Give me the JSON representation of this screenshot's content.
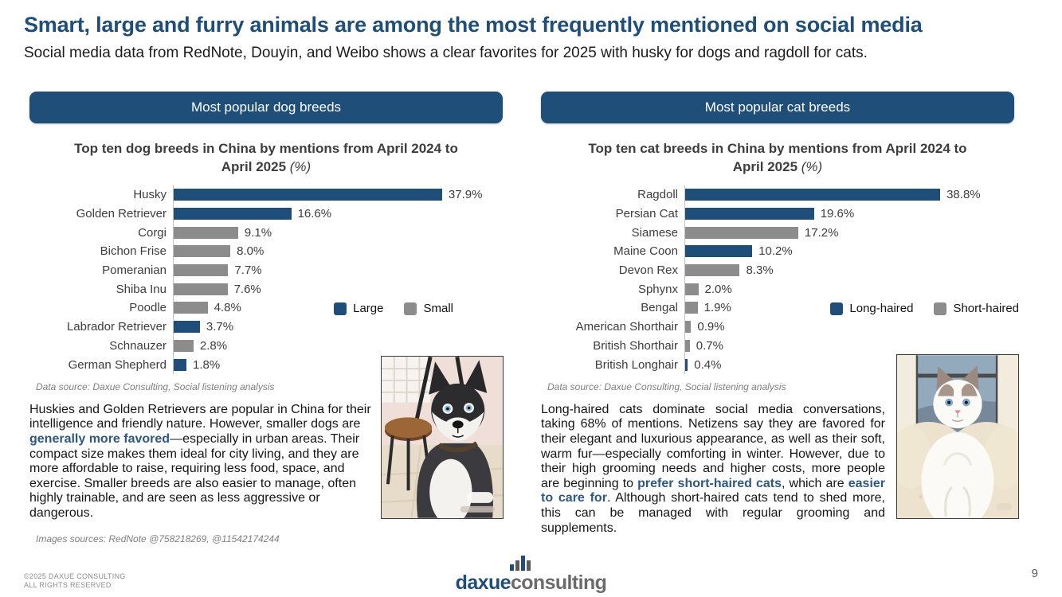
{
  "page": {
    "title": "Smart, large and furry animals are among the most frequently mentioned on social media",
    "subtitle": "Social media data from RedNote, Douyin, and Weibo shows a clear favorites for 2025 with husky for dogs and ragdoll for cats.",
    "page_number": "9",
    "copyright_line1": "©2025 DAXUE CONSULTING",
    "copyright_line2": "ALL RIGHTS RESERVED",
    "logo_daxue": "daxue",
    "logo_consulting": "consulting"
  },
  "colors": {
    "navy": "#1F4E79",
    "bar_gray": "#8C8C8C",
    "axis": "#C2C2C2",
    "highlight_text": "#2e5782"
  },
  "panels": [
    {
      "header": "Most popular dog breeds",
      "chart_title": "Top ten dog breeds in China by mentions from April 2024 to April 2025 ",
      "chart_title_unit": "(%)",
      "data_source": "Data source: Daxue Consulting, Social listening analysis",
      "paragraph": [
        {
          "text": "Huskies and Golden Retrievers are popular in China for their intelligence and friendly nature. However, smaller dogs are ",
          "highlight": false
        },
        {
          "text": "generally more favored",
          "highlight": true
        },
        {
          "text": "—especially in urban areas. Their compact size makes them ideal for city living, and they are more affordable to raise, requiring less food, space, and exercise. Smaller breeds are also easier to manage, often highly trainable, and are seen as less aggressive or dangerous.",
          "highlight": false
        }
      ],
      "images_sources": "Images sources: RedNote @758218269, @11542174244"
    },
    {
      "header": "Most popular cat breeds",
      "chart_title": "Top ten cat breeds in China by mentions from April 2024 to April 2025 ",
      "chart_title_unit": "(%)",
      "data_source": "Data source: Daxue Consulting, Social listening analysis",
      "paragraph": [
        {
          "text": "Long-haired cats dominate social media conversations, taking 68% of mentions. Netizens say they are favored for their elegant and luxurious appearance, as well as their soft, warm fur—especially comforting in winter. However, due to their high grooming needs and higher costs, more people are beginning to ",
          "highlight": false
        },
        {
          "text": "prefer short-haired cats",
          "highlight": true
        },
        {
          "text": ", which are ",
          "highlight": false
        },
        {
          "text": "easier to care for",
          "highlight": true
        },
        {
          "text": ". Although short-haired cats tend to shed more, this can be managed with regular grooming and supplements.",
          "highlight": false
        }
      ],
      "images_sources": ""
    }
  ],
  "chart_data": [
    {
      "type": "bar",
      "orientation": "horizontal",
      "title": "Top ten dog breeds in China by mentions from April 2024 to April 2025 (%)",
      "categories": [
        "Husky",
        "Golden Retriever",
        "Corgi",
        "Bichon Frise",
        "Pomeranian",
        "Shiba Inu",
        "Poodle",
        "Labrador Retriever",
        "Schnauzer",
        "German Shepherd"
      ],
      "values": [
        37.9,
        16.6,
        9.1,
        8.0,
        7.7,
        7.6,
        4.8,
        3.7,
        2.8,
        1.8
      ],
      "value_labels": [
        "37.9%",
        "16.6%",
        "9.1%",
        "8.0%",
        "7.7%",
        "7.6%",
        "4.8%",
        "3.7%",
        "2.8%",
        "1.8%"
      ],
      "groups": [
        "Large",
        "Large",
        "Small",
        "Small",
        "Small",
        "Small",
        "Small",
        "Large",
        "Small",
        "Large"
      ],
      "group_colors": {
        "Large": "#1F4E79",
        "Small": "#8C8C8C"
      },
      "legend": [
        "Large",
        "Small"
      ],
      "legend_position": "right-middle",
      "xlim": [
        0,
        42
      ],
      "grid": false
    },
    {
      "type": "bar",
      "orientation": "horizontal",
      "title": "Top ten cat breeds in China by mentions from April 2024 to April 2025 (%)",
      "categories": [
        "Ragdoll",
        "Persian Cat",
        "Siamese",
        "Maine Coon",
        "Devon Rex",
        "Sphynx",
        "Bengal",
        "American Shorthair",
        "British Shorthair",
        "British Longhair"
      ],
      "values": [
        38.8,
        19.6,
        17.2,
        10.2,
        8.3,
        2.0,
        1.9,
        0.9,
        0.7,
        0.4
      ],
      "value_labels": [
        "38.8%",
        "19.6%",
        "17.2%",
        "10.2%",
        "8.3%",
        "2.0%",
        "1.9%",
        "0.9%",
        "0.7%",
        "0.4%"
      ],
      "groups": [
        "Long-haired",
        "Long-haired",
        "Short-haired",
        "Long-haired",
        "Short-haired",
        "Short-haired",
        "Short-haired",
        "Short-haired",
        "Short-haired",
        "Long-haired"
      ],
      "group_colors": {
        "Long-haired": "#1F4E79",
        "Short-haired": "#8C8C8C"
      },
      "legend": [
        "Long-haired",
        "Short-haired"
      ],
      "legend_position": "right-middle",
      "xlim": [
        0,
        47
      ],
      "grid": false
    }
  ]
}
